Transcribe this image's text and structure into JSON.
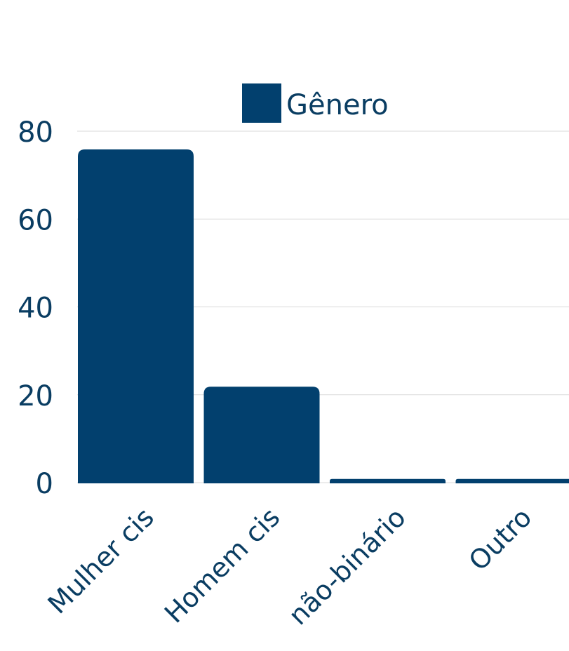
{
  "chart_data": {
    "type": "bar",
    "categories": [
      "Mulher cis",
      "Homem cis",
      "não-binário",
      "Outro"
    ],
    "series": [
      {
        "name": "Gênero",
        "values": [
          76,
          22,
          1,
          1
        ]
      }
    ],
    "ylim": [
      0,
      80
    ],
    "yticks": [
      0,
      20,
      40,
      60,
      80
    ],
    "grid": true,
    "legend": "top-center",
    "colors": {
      "bar": "#02406e",
      "text": "#0a3d62",
      "grid": "#d9d9d9"
    }
  }
}
